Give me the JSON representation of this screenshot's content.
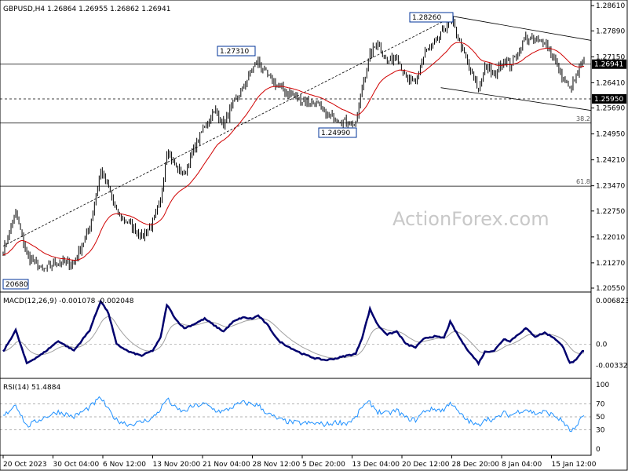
{
  "header": {
    "main": "GBPUSD,H4  1.26864 1.26955 1.26862 1.26941",
    "macd": "MACD(12,26,9) -0.001078 -0.002048",
    "rsi": "RSI(14) 51.4884"
  },
  "watermark": "ActionForex.com",
  "colors": {
    "candle": "#000000",
    "ma": "#d00000",
    "macd": "#00006e",
    "signal": "#a0a0a0",
    "rsi": "#1e90ff",
    "price_tag": "#000000"
  },
  "chart_data": [
    {
      "type": "bar",
      "panel": "price",
      "ylim": [
        1.2055,
        1.2866
      ],
      "y_ticks": [
        "1.28610",
        "1.27890",
        "1.27150",
        "1.26410",
        "1.25690",
        "1.24950",
        "1.24210",
        "1.23470",
        "1.22750",
        "1.22010",
        "1.21270",
        "1.20550"
      ],
      "x_ticks": [
        "20 Oct 2023",
        "30 Oct 04:00",
        "6 Nov 12:00",
        "13 Nov 20:00",
        "21 Nov 04:00",
        "28 Nov 12:00",
        "5 Dec 20:00",
        "13 Dec 04:00",
        "20 Dec 12:00",
        "28 Dec 20:00",
        "8 Jan 04:00",
        "15 Jan 12:00"
      ],
      "anchors": [
        [
          0,
          1.216
        ],
        [
          8,
          1.227
        ],
        [
          15,
          1.215
        ],
        [
          25,
          1.2105
        ],
        [
          35,
          1.213
        ],
        [
          45,
          1.2125
        ],
        [
          55,
          1.223
        ],
        [
          62,
          1.239
        ],
        [
          67,
          1.234
        ],
        [
          72,
          1.227
        ],
        [
          80,
          1.224
        ],
        [
          88,
          1.22
        ],
        [
          95,
          1.224
        ],
        [
          100,
          1.23
        ],
        [
          104,
          1.245
        ],
        [
          110,
          1.24
        ],
        [
          115,
          1.238
        ],
        [
          120,
          1.244
        ],
        [
          128,
          1.252
        ],
        [
          135,
          1.256
        ],
        [
          140,
          1.252
        ],
        [
          146,
          1.258
        ],
        [
          152,
          1.262
        ],
        [
          158,
          1.268
        ],
        [
          162,
          1.27
        ],
        [
          168,
          1.266
        ],
        [
          175,
          1.263
        ],
        [
          182,
          1.261
        ],
        [
          190,
          1.259
        ],
        [
          198,
          1.2585
        ],
        [
          205,
          1.255
        ],
        [
          212,
          1.254
        ],
        [
          218,
          1.253
        ],
        [
          224,
          1.252
        ],
        [
          228,
          1.263
        ],
        [
          233,
          1.272
        ],
        [
          238,
          1.276
        ],
        [
          244,
          1.27
        ],
        [
          250,
          1.272
        ],
        [
          256,
          1.265
        ],
        [
          262,
          1.264
        ],
        [
          268,
          1.273
        ],
        [
          274,
          1.275
        ],
        [
          280,
          1.279
        ],
        [
          284,
          1.2826
        ],
        [
          288,
          1.278
        ],
        [
          293,
          1.272
        ],
        [
          298,
          1.266
        ],
        [
          302,
          1.262
        ],
        [
          306,
          1.269
        ],
        [
          312,
          1.266
        ],
        [
          318,
          1.271
        ],
        [
          322,
          1.269
        ],
        [
          327,
          1.273
        ],
        [
          332,
          1.277
        ],
        [
          338,
          1.276
        ],
        [
          344,
          1.276
        ],
        [
          350,
          1.271
        ],
        [
          356,
          1.265
        ],
        [
          360,
          1.262
        ],
        [
          364,
          1.266
        ],
        [
          368,
          1.2694
        ]
      ],
      "annotations": [
        {
          "label": "1.28260",
          "value": 1.2826
        },
        {
          "label": "1.27310",
          "value": 1.2731
        },
        {
          "label": "1.24990",
          "value": 1.2499
        },
        {
          "label": "20680",
          "value": 1.2068
        }
      ],
      "hlines": [
        {
          "value": 1.26941,
          "label": "1.26941",
          "style": "solid",
          "tag": true
        },
        {
          "value": 1.2595,
          "label": "1.25950",
          "style": "dashed",
          "tag": true
        },
        {
          "value": 1.2526,
          "label": "38.2",
          "style": "solid",
          "tag": false
        },
        {
          "value": 1.2346,
          "label": "61.8",
          "style": "solid",
          "tag": false
        }
      ]
    },
    {
      "type": "line",
      "panel": "macd",
      "ylim": [
        -0.0045,
        0.0072
      ],
      "y_ticks": [
        "0.006823",
        "0.0",
        "-0.003321"
      ],
      "y_tick_values": [
        0.006823,
        0.0,
        -0.003321
      ],
      "macd_anchors": [
        [
          0,
          -0.0012
        ],
        [
          8,
          0.0022
        ],
        [
          15,
          -0.003
        ],
        [
          25,
          -0.0015
        ],
        [
          35,
          0.0005
        ],
        [
          45,
          -0.001
        ],
        [
          55,
          0.0022
        ],
        [
          62,
          0.0068
        ],
        [
          67,
          0.0048
        ],
        [
          72,
          0.0
        ],
        [
          80,
          -0.0012
        ],
        [
          88,
          -0.0018
        ],
        [
          95,
          -0.001
        ],
        [
          100,
          0.001
        ],
        [
          104,
          0.0062
        ],
        [
          110,
          0.0038
        ],
        [
          115,
          0.0025
        ],
        [
          120,
          0.003
        ],
        [
          128,
          0.004
        ],
        [
          135,
          0.0028
        ],
        [
          140,
          0.002
        ],
        [
          146,
          0.0035
        ],
        [
          152,
          0.0042
        ],
        [
          158,
          0.004
        ],
        [
          162,
          0.0045
        ],
        [
          168,
          0.003
        ],
        [
          175,
          0.0005
        ],
        [
          182,
          -0.0005
        ],
        [
          190,
          -0.0015
        ],
        [
          198,
          -0.0022
        ],
        [
          205,
          -0.0025
        ],
        [
          212,
          -0.0022
        ],
        [
          218,
          -0.0018
        ],
        [
          224,
          -0.0015
        ],
        [
          228,
          0.001
        ],
        [
          233,
          0.0055
        ],
        [
          238,
          0.003
        ],
        [
          244,
          0.0015
        ],
        [
          250,
          0.002
        ],
        [
          256,
          0.0
        ],
        [
          262,
          -0.0005
        ],
        [
          268,
          0.001
        ],
        [
          274,
          0.0012
        ],
        [
          280,
          0.001
        ],
        [
          284,
          0.0035
        ],
        [
          288,
          0.0018
        ],
        [
          293,
          -0.0002
        ],
        [
          298,
          -0.0018
        ],
        [
          302,
          -0.003
        ],
        [
          306,
          -0.0012
        ],
        [
          312,
          -0.001
        ],
        [
          318,
          0.0008
        ],
        [
          322,
          0.0005
        ],
        [
          327,
          0.0015
        ],
        [
          332,
          0.0025
        ],
        [
          338,
          0.0012
        ],
        [
          344,
          0.0018
        ],
        [
          350,
          0.001
        ],
        [
          356,
          -0.0005
        ],
        [
          360,
          -0.003
        ],
        [
          364,
          -0.0025
        ],
        [
          368,
          -0.0011
        ]
      ]
    },
    {
      "type": "line",
      "panel": "rsi",
      "ylim": [
        0,
        100
      ],
      "y_ticks": [
        "100",
        "70",
        "50",
        "30",
        "0"
      ],
      "y_tick_values": [
        100,
        70,
        50,
        30,
        0
      ],
      "rsi_anchors": [
        [
          0,
          50
        ],
        [
          8,
          70
        ],
        [
          15,
          35
        ],
        [
          25,
          48
        ],
        [
          35,
          58
        ],
        [
          45,
          50
        ],
        [
          55,
          65
        ],
        [
          62,
          80
        ],
        [
          67,
          60
        ],
        [
          72,
          45
        ],
        [
          80,
          38
        ],
        [
          88,
          42
        ],
        [
          95,
          48
        ],
        [
          100,
          62
        ],
        [
          104,
          78
        ],
        [
          110,
          62
        ],
        [
          115,
          58
        ],
        [
          120,
          66
        ],
        [
          128,
          70
        ],
        [
          135,
          60
        ],
        [
          140,
          58
        ],
        [
          146,
          66
        ],
        [
          152,
          72
        ],
        [
          158,
          70
        ],
        [
          162,
          68
        ],
        [
          168,
          55
        ],
        [
          175,
          46
        ],
        [
          182,
          42
        ],
        [
          190,
          40
        ],
        [
          198,
          40
        ],
        [
          205,
          38
        ],
        [
          212,
          42
        ],
        [
          218,
          40
        ],
        [
          224,
          48
        ],
        [
          228,
          66
        ],
        [
          233,
          72
        ],
        [
          238,
          58
        ],
        [
          244,
          55
        ],
        [
          250,
          60
        ],
        [
          256,
          48
        ],
        [
          262,
          45
        ],
        [
          268,
          60
        ],
        [
          274,
          62
        ],
        [
          280,
          60
        ],
        [
          284,
          74
        ],
        [
          288,
          60
        ],
        [
          293,
          48
        ],
        [
          298,
          40
        ],
        [
          302,
          36
        ],
        [
          306,
          48
        ],
        [
          312,
          45
        ],
        [
          318,
          56
        ],
        [
          322,
          52
        ],
        [
          327,
          58
        ],
        [
          332,
          62
        ],
        [
          338,
          55
        ],
        [
          344,
          58
        ],
        [
          350,
          52
        ],
        [
          356,
          42
        ],
        [
          360,
          28
        ],
        [
          364,
          32
        ],
        [
          368,
          51
        ]
      ]
    }
  ]
}
